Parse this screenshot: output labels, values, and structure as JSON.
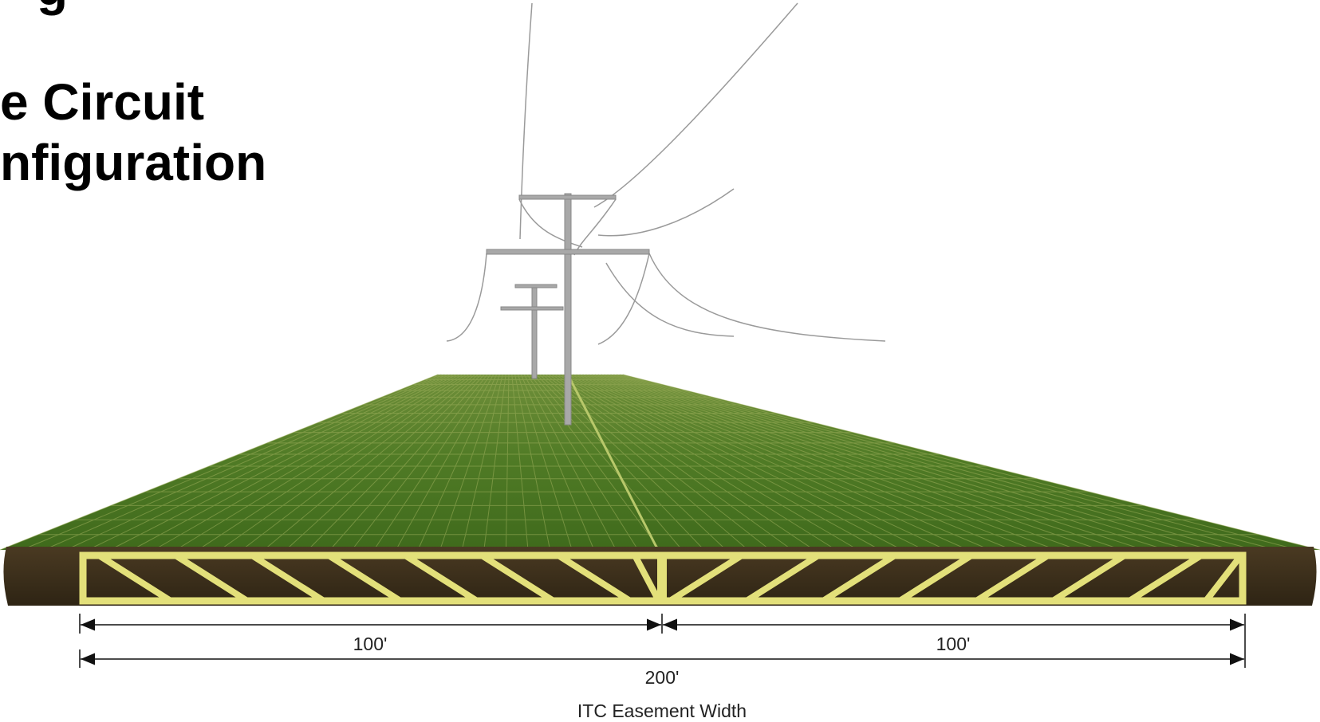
{
  "title_lines": [
    "g",
    "e Circuit",
    "nfiguration"
  ],
  "dimensions": {
    "left": "100'",
    "right": "100'",
    "total": "200'",
    "caption": "ITC Easement Width"
  }
}
